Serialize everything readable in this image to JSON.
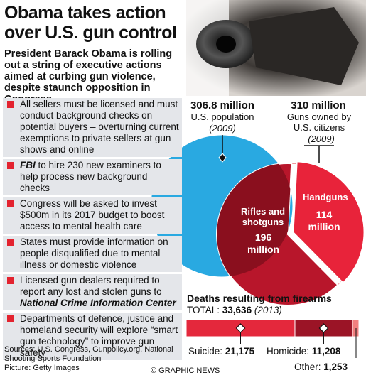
{
  "header": {
    "title": "Obama takes action over U.S. gun control",
    "subtitle": "President Barack Obama is rolling out a string of executive actions aimed at curbing gun violence, despite staunch opposition in Congress"
  },
  "bullets": [
    [
      {
        "text": "All sellers must be licensed and must conduct background checks on potential buyers – overturning current exemptions to private sellers at gun shows and online"
      }
    ],
    [
      {
        "text": "FBI",
        "em": true
      },
      {
        "text": " to hire 230 new examiners to help process new background checks"
      }
    ],
    [
      {
        "text": "Congress will be asked to invest $500m in its 2017 budget to boost access to mental health care"
      }
    ],
    [
      {
        "text": "States must provide information on people disqualified due to mental illness or domestic violence"
      }
    ],
    [
      {
        "text": "Licensed gun dealers required to report any lost and stolen guns to "
      },
      {
        "text": "National Crime Information Center",
        "em": true
      }
    ],
    [
      {
        "text": "Departments of defence, justice and homeland security will explore “smart gun technology” to improve gun safety"
      }
    ]
  ],
  "footer": {
    "sources": "Sources: U.S. Congress, Gunpolicy.org, National Shooting Sports Foundation",
    "picture": "Picture: Getty Images",
    "credit": "© GRAPHIC NEWS"
  },
  "chart_data": [
    {
      "type": "circles",
      "series": [
        {
          "name": "U.S. population",
          "value": 306.8,
          "value_label": "306.8 million",
          "year": "(2009)",
          "color": "#29a9e1"
        },
        {
          "name": "Guns owned by U.S. citizens",
          "value": 310,
          "value_label": "310 million",
          "year": "(2009)",
          "color": "#e4283c"
        }
      ]
    },
    {
      "type": "pie",
      "categories": [
        "Handguns",
        "Rifles and shotguns"
      ],
      "values": [
        114,
        196
      ],
      "value_labels": [
        "114 million",
        "196 million"
      ],
      "colors": [
        "#e8233a",
        "#b8162b"
      ]
    },
    {
      "type": "stacked_bar",
      "title": "Deaths resulting from firearms",
      "total_label": "TOTAL:",
      "total": {
        "value": 33636,
        "label": "33,636"
      },
      "year": "(2013)",
      "categories": [
        "Suicide:",
        "Homicide:",
        "Other:"
      ],
      "values": [
        21175,
        11208,
        1253
      ],
      "value_labels": [
        "21,175",
        "11,208",
        "1,253"
      ],
      "colors": [
        "#e4283c",
        "#9b1426",
        "#f27f7f"
      ]
    }
  ]
}
